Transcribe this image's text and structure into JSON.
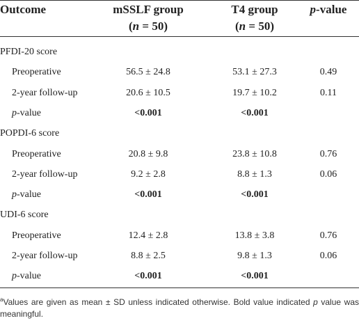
{
  "table": {
    "header": {
      "outcome": "Outcome",
      "groups": [
        {
          "name": "mSSLF group",
          "n": [
            {
              "text": "("
            },
            {
              "text": "n",
              "italic": true
            },
            {
              "text": " = 50)"
            }
          ]
        },
        {
          "name": "T4 group",
          "n": [
            {
              "text": "("
            },
            {
              "text": "n",
              "italic": true
            },
            {
              "text": " = 50)"
            }
          ]
        }
      ],
      "p_value": [
        {
          "text": "p",
          "italic": true
        },
        {
          "text": "-value"
        }
      ]
    },
    "sections": [
      {
        "title": "PFDI-20 score",
        "rows": [
          {
            "label": [
              {
                "text": "Preoperative"
              }
            ],
            "values": [
              "56.5 ± 24.8",
              "53.1 ± 27.3",
              "0.49"
            ]
          },
          {
            "label": [
              {
                "text": "2-year follow-up"
              }
            ],
            "values": [
              "20.6 ± 10.5",
              "19.7 ± 10.2",
              "0.11"
            ]
          },
          {
            "label": [
              {
                "text": "p",
                "italic": true
              },
              {
                "text": "-value"
              }
            ],
            "values": [
              "<0.001",
              "<0.001"
            ],
            "bold": true
          }
        ]
      },
      {
        "title": "POPDI-6 score",
        "rows": [
          {
            "label": [
              {
                "text": "Preoperative"
              }
            ],
            "values": [
              "20.8 ± 9.8",
              "23.8 ± 10.8",
              "0.76"
            ]
          },
          {
            "label": [
              {
                "text": "2-year follow-up"
              }
            ],
            "values": [
              "9.2 ± 2.8",
              "8.8 ± 1.3",
              "0.06"
            ]
          },
          {
            "label": [
              {
                "text": "p",
                "italic": true
              },
              {
                "text": "-value"
              }
            ],
            "values": [
              "<0.001",
              "<0.001"
            ],
            "bold": true
          }
        ]
      },
      {
        "title": "UDI-6 score",
        "rows": [
          {
            "label": [
              {
                "text": "Preoperative"
              }
            ],
            "values": [
              "12.4 ± 2.8",
              "13.8 ± 3.8",
              "0.76"
            ]
          },
          {
            "label": [
              {
                "text": "2-year follow-up"
              }
            ],
            "values": [
              "8.8 ± 2.5",
              "9.8 ± 1.3",
              "0.06"
            ]
          },
          {
            "label": [
              {
                "text": "p",
                "italic": true
              },
              {
                "text": "-value"
              }
            ],
            "values": [
              "<0.001",
              "<0.001"
            ],
            "bold": true
          }
        ]
      }
    ],
    "footnote": [
      {
        "text": "a",
        "sup": true
      },
      {
        "text": "Values are given as mean ± SD unless indicated otherwise. Bold value indicated "
      },
      {
        "text": "p",
        "italic": true
      },
      {
        "text": " value was meaningful."
      }
    ]
  }
}
